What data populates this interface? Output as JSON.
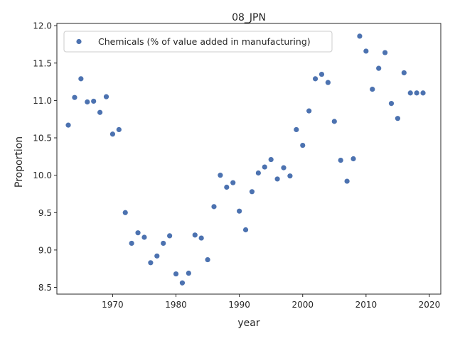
{
  "chart_data": {
    "type": "scatter",
    "title": "08_JPN",
    "xlabel": "year",
    "ylabel": "Proportion",
    "xlim": [
      1961.2,
      2021.8
    ],
    "ylim": [
      8.41,
      12.03
    ],
    "xticks": [
      1970,
      1980,
      1990,
      2000,
      2010,
      2020
    ],
    "yticks": [
      8.5,
      9.0,
      9.5,
      10.0,
      10.5,
      11.0,
      11.5,
      12.0
    ],
    "grid": false,
    "legend_position": "top-left",
    "marker_color": "#4c72b0",
    "series": [
      {
        "name": "Chemicals (% of value added in manufacturing)",
        "x": [
          1963,
          1964,
          1965,
          1966,
          1967,
          1968,
          1969,
          1970,
          1971,
          1972,
          1973,
          1974,
          1975,
          1976,
          1977,
          1978,
          1979,
          1980,
          1981,
          1982,
          1983,
          1984,
          1985,
          1986,
          1987,
          1988,
          1989,
          1990,
          1991,
          1992,
          1993,
          1994,
          1995,
          1996,
          1997,
          1998,
          1999,
          2000,
          2001,
          2002,
          2003,
          2004,
          2005,
          2006,
          2007,
          2008,
          2009,
          2010,
          2011,
          2012,
          2013,
          2014,
          2015,
          2016,
          2017,
          2018,
          2019
        ],
        "y": [
          10.67,
          11.04,
          11.29,
          10.98,
          10.99,
          10.84,
          11.05,
          10.55,
          10.61,
          9.5,
          9.09,
          9.23,
          9.17,
          8.83,
          8.92,
          9.09,
          9.19,
          8.68,
          8.56,
          8.69,
          9.2,
          9.16,
          8.87,
          9.58,
          10.0,
          9.84,
          9.9,
          9.52,
          9.27,
          9.78,
          10.03,
          10.11,
          10.21,
          9.95,
          10.1,
          9.99,
          10.61,
          10.4,
          10.86,
          11.29,
          11.35,
          11.24,
          10.72,
          10.2,
          9.92,
          10.22,
          11.86,
          11.66,
          11.15,
          11.43,
          11.64,
          10.96,
          10.76,
          11.37,
          11.1,
          11.1,
          11.1
        ]
      }
    ]
  }
}
